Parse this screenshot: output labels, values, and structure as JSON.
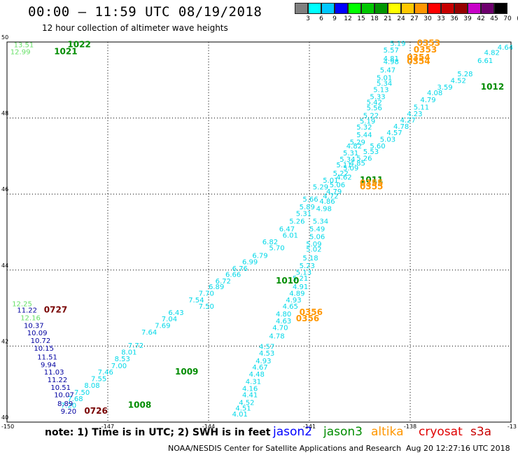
{
  "header": {
    "title": "00:00 – 11:59 UTC 08/19/2018",
    "subtitle": "12 hour collection of altimeter wave heights"
  },
  "legend": {
    "unit": "(ft)",
    "labels": [
      "3",
      "6",
      "9",
      "12",
      "15",
      "18",
      "21",
      "24",
      "27",
      "30",
      "33",
      "36",
      "39",
      "42",
      "45",
      "70"
    ],
    "colors": [
      "#808080",
      "#00ffff",
      "#00c8ff",
      "#0000ff",
      "#00ff00",
      "#00c800",
      "#009600",
      "#ffff00",
      "#ffc800",
      "#ff9600",
      "#ff0000",
      "#c80000",
      "#960000",
      "#c800c8",
      "#6e006e",
      "#000000"
    ]
  },
  "axes": {
    "lat_labels": [
      "50",
      "48",
      "46",
      "44",
      "42",
      "40"
    ],
    "lon_labels": [
      "-150",
      "-147",
      "-144",
      "-141",
      "-138",
      "-13"
    ]
  },
  "colors": {
    "cyan": "#00d8e8",
    "green": "#008c00",
    "light_green": "#66e066",
    "navy": "#0000a0",
    "orange": "#ff9600",
    "dark_red": "#780000"
  },
  "labels": [
    {
      "t": "13.51",
      "lat": 49.86,
      "lon": -149.8,
      "c": "light_green"
    },
    {
      "t": "1022",
      "lat": 49.86,
      "lon": -148.2,
      "c": "green",
      "big": true
    },
    {
      "t": "12.99",
      "lat": 49.68,
      "lon": -149.9,
      "c": "light_green"
    },
    {
      "t": "1021",
      "lat": 49.68,
      "lon": -148.6,
      "c": "green",
      "big": true
    },
    {
      "t": "5.19",
      "lat": 49.9,
      "lon": -138.6,
      "c": "cyan"
    },
    {
      "t": "0353",
      "lat": 49.9,
      "lon": -137.8,
      "c": "orange",
      "big": true
    },
    {
      "t": "4.64",
      "lat": 49.8,
      "lon": -135.4,
      "c": "cyan"
    },
    {
      "t": "5.57",
      "lat": 49.72,
      "lon": -138.8,
      "c": "cyan"
    },
    {
      "t": "0353",
      "lat": 49.72,
      "lon": -137.9,
      "c": "orange",
      "big": true
    },
    {
      "t": "4.82",
      "lat": 49.66,
      "lon": -135.8,
      "c": "cyan"
    },
    {
      "t": "4.81",
      "lat": 49.5,
      "lon": -138.8,
      "c": "cyan"
    },
    {
      "t": "0354",
      "lat": 49.52,
      "lon": -138.1,
      "c": "orange",
      "big": true
    },
    {
      "t": "6.61",
      "lat": 49.45,
      "lon": -136.0,
      "c": "cyan"
    },
    {
      "t": "4.98",
      "lat": 49.42,
      "lon": -138.8,
      "c": "cyan"
    },
    {
      "t": "0354",
      "lat": 49.42,
      "lon": -138.1,
      "c": "orange",
      "big": true
    },
    {
      "t": "5.47",
      "lat": 49.2,
      "lon": -138.9,
      "c": "cyan"
    },
    {
      "t": "5.28",
      "lat": 49.1,
      "lon": -136.6,
      "c": "cyan"
    },
    {
      "t": "5.01",
      "lat": 49.0,
      "lon": -139.0,
      "c": "cyan"
    },
    {
      "t": "4.52",
      "lat": 48.92,
      "lon": -136.8,
      "c": "cyan"
    },
    {
      "t": "5.34",
      "lat": 48.85,
      "lon": -139.0,
      "c": "cyan"
    },
    {
      "t": "3.59",
      "lat": 48.75,
      "lon": -137.2,
      "c": "cyan"
    },
    {
      "t": "1012",
      "lat": 48.75,
      "lon": -135.9,
      "c": "green",
      "big": true
    },
    {
      "t": "5.13",
      "lat": 48.68,
      "lon": -139.1,
      "c": "cyan"
    },
    {
      "t": "4.08",
      "lat": 48.6,
      "lon": -137.5,
      "c": "cyan"
    },
    {
      "t": "5.33",
      "lat": 48.5,
      "lon": -139.2,
      "c": "cyan"
    },
    {
      "t": "4.79",
      "lat": 48.42,
      "lon": -137.7,
      "c": "cyan"
    },
    {
      "t": "5.42",
      "lat": 48.35,
      "lon": -139.3,
      "c": "cyan"
    },
    {
      "t": "5.11",
      "lat": 48.22,
      "lon": -137.9,
      "c": "cyan"
    },
    {
      "t": "5.56",
      "lat": 48.2,
      "lon": -139.3,
      "c": "cyan"
    },
    {
      "t": "4.23",
      "lat": 48.05,
      "lon": -138.1,
      "c": "cyan"
    },
    {
      "t": "5.22",
      "lat": 48.0,
      "lon": -139.4,
      "c": "cyan"
    },
    {
      "t": "4.27",
      "lat": 47.88,
      "lon": -138.3,
      "c": "cyan"
    },
    {
      "t": "5.19",
      "lat": 47.85,
      "lon": -139.5,
      "c": "cyan"
    },
    {
      "t": "4.78",
      "lat": 47.72,
      "lon": -138.5,
      "c": "cyan"
    },
    {
      "t": "5.32",
      "lat": 47.7,
      "lon": -139.6,
      "c": "cyan"
    },
    {
      "t": "4.57",
      "lat": 47.55,
      "lon": -138.7,
      "c": "cyan"
    },
    {
      "t": "5.44",
      "lat": 47.5,
      "lon": -139.6,
      "c": "cyan"
    },
    {
      "t": "5.03",
      "lat": 47.38,
      "lon": -138.9,
      "c": "cyan"
    },
    {
      "t": "5.29",
      "lat": 47.3,
      "lon": -139.8,
      "c": "cyan"
    },
    {
      "t": "5.60",
      "lat": 47.2,
      "lon": -139.2,
      "c": "cyan"
    },
    {
      "t": "4.82",
      "lat": 47.2,
      "lon": -139.9,
      "c": "cyan"
    },
    {
      "t": "5.53",
      "lat": 47.05,
      "lon": -139.4,
      "c": "cyan"
    },
    {
      "t": "5.31",
      "lat": 47.02,
      "lon": -140.0,
      "c": "cyan"
    },
    {
      "t": "5.26",
      "lat": 46.88,
      "lon": -139.6,
      "c": "cyan"
    },
    {
      "t": "5.34",
      "lat": 46.85,
      "lon": -140.1,
      "c": "cyan"
    },
    {
      "t": "4.85",
      "lat": 46.75,
      "lon": -139.8,
      "c": "cyan"
    },
    {
      "t": "5.11",
      "lat": 46.7,
      "lon": -140.2,
      "c": "cyan"
    },
    {
      "t": "5.09",
      "lat": 46.62,
      "lon": -140.0,
      "c": "cyan"
    },
    {
      "t": "5.22",
      "lat": 46.48,
      "lon": -140.3,
      "c": "cyan"
    },
    {
      "t": "4.62",
      "lat": 46.38,
      "lon": -140.2,
      "c": "cyan"
    },
    {
      "t": "1011",
      "lat": 46.3,
      "lon": -139.5,
      "c": "green",
      "big": true
    },
    {
      "t": "5.01",
      "lat": 46.3,
      "lon": -140.6,
      "c": "cyan"
    },
    {
      "t": "0355",
      "lat": 46.22,
      "lon": -139.5,
      "c": "orange",
      "big": true
    },
    {
      "t": "5.06",
      "lat": 46.18,
      "lon": -140.4,
      "c": "cyan"
    },
    {
      "t": "0355",
      "lat": 46.12,
      "lon": -139.5,
      "c": "orange",
      "big": true
    },
    {
      "t": "5.29",
      "lat": 46.12,
      "lon": -140.9,
      "c": "cyan"
    },
    {
      "t": "4.79",
      "lat": 46.0,
      "lon": -140.5,
      "c": "cyan"
    },
    {
      "t": "4.72",
      "lat": 45.88,
      "lon": -140.6,
      "c": "cyan"
    },
    {
      "t": "5.66",
      "lat": 45.8,
      "lon": -141.2,
      "c": "cyan"
    },
    {
      "t": "4.86",
      "lat": 45.75,
      "lon": -140.7,
      "c": "cyan"
    },
    {
      "t": "5.89",
      "lat": 45.6,
      "lon": -141.3,
      "c": "cyan"
    },
    {
      "t": "4.98",
      "lat": 45.55,
      "lon": -140.8,
      "c": "cyan"
    },
    {
      "t": "5.31",
      "lat": 45.42,
      "lon": -141.4,
      "c": "cyan"
    },
    {
      "t": "5.26",
      "lat": 45.22,
      "lon": -141.6,
      "c": "cyan"
    },
    {
      "t": "5.34",
      "lat": 45.22,
      "lon": -140.9,
      "c": "cyan"
    },
    {
      "t": "6.47",
      "lat": 45.02,
      "lon": -141.9,
      "c": "cyan"
    },
    {
      "t": "5.49",
      "lat": 45.02,
      "lon": -141.0,
      "c": "cyan"
    },
    {
      "t": "6.01",
      "lat": 44.85,
      "lon": -141.8,
      "c": "cyan"
    },
    {
      "t": "5.06",
      "lat": 44.82,
      "lon": -141.0,
      "c": "cyan"
    },
    {
      "t": "6.82",
      "lat": 44.68,
      "lon": -142.4,
      "c": "cyan"
    },
    {
      "t": "5.09",
      "lat": 44.62,
      "lon": -141.1,
      "c": "cyan"
    },
    {
      "t": "5.70",
      "lat": 44.52,
      "lon": -142.2,
      "c": "cyan"
    },
    {
      "t": "5.02",
      "lat": 44.48,
      "lon": -141.1,
      "c": "cyan"
    },
    {
      "t": "6.79",
      "lat": 44.32,
      "lon": -142.7,
      "c": "cyan"
    },
    {
      "t": "5.18",
      "lat": 44.25,
      "lon": -141.2,
      "c": "cyan"
    },
    {
      "t": "6.99",
      "lat": 44.15,
      "lon": -143.0,
      "c": "cyan"
    },
    {
      "t": "5.23",
      "lat": 44.05,
      "lon": -141.3,
      "c": "cyan"
    },
    {
      "t": "6.76",
      "lat": 43.98,
      "lon": -143.3,
      "c": "cyan"
    },
    {
      "t": "5.13",
      "lat": 43.88,
      "lon": -141.4,
      "c": "cyan"
    },
    {
      "t": "6.66",
      "lat": 43.82,
      "lon": -143.5,
      "c": "cyan"
    },
    {
      "t": "5.21",
      "lat": 43.72,
      "lon": -141.5,
      "c": "cyan"
    },
    {
      "t": "6.72",
      "lat": 43.65,
      "lon": -143.8,
      "c": "cyan"
    },
    {
      "t": "1010",
      "lat": 43.65,
      "lon": -142.0,
      "c": "green",
      "big": true
    },
    {
      "t": "6.89",
      "lat": 43.5,
      "lon": -144.0,
      "c": "cyan"
    },
    {
      "t": "4.91",
      "lat": 43.5,
      "lon": -141.5,
      "c": "cyan"
    },
    {
      "t": "7.70",
      "lat": 43.32,
      "lon": -144.3,
      "c": "cyan"
    },
    {
      "t": "4.89",
      "lat": 43.32,
      "lon": -141.6,
      "c": "cyan"
    },
    {
      "t": "7.54",
      "lat": 43.15,
      "lon": -144.6,
      "c": "cyan"
    },
    {
      "t": "4.93",
      "lat": 43.15,
      "lon": -141.7,
      "c": "cyan"
    },
    {
      "t": "7.50",
      "lat": 42.98,
      "lon": -144.3,
      "c": "cyan"
    },
    {
      "t": "4.65",
      "lat": 42.98,
      "lon": -141.8,
      "c": "cyan"
    },
    {
      "t": "6.43",
      "lat": 42.82,
      "lon": -145.2,
      "c": "cyan"
    },
    {
      "t": "0356",
      "lat": 42.82,
      "lon": -141.3,
      "c": "orange",
      "big": true
    },
    {
      "t": "4.80",
      "lat": 42.78,
      "lon": -142.0,
      "c": "cyan"
    },
    {
      "t": "7.04",
      "lat": 42.65,
      "lon": -145.4,
      "c": "cyan"
    },
    {
      "t": "0356",
      "lat": 42.65,
      "lon": -141.4,
      "c": "orange",
      "big": true
    },
    {
      "t": "4.63",
      "lat": 42.6,
      "lon": -142.0,
      "c": "cyan"
    },
    {
      "t": "7.69",
      "lat": 42.48,
      "lon": -145.6,
      "c": "cyan"
    },
    {
      "t": "4.70",
      "lat": 42.42,
      "lon": -142.1,
      "c": "cyan"
    },
    {
      "t": "7.64",
      "lat": 42.3,
      "lon": -146.0,
      "c": "cyan"
    },
    {
      "t": "4.78",
      "lat": 42.2,
      "lon": -142.2,
      "c": "cyan"
    },
    {
      "t": "7.72",
      "lat": 41.95,
      "lon": -146.4,
      "c": "cyan"
    },
    {
      "t": "4.57",
      "lat": 41.92,
      "lon": -142.5,
      "c": "cyan"
    },
    {
      "t": "8.01",
      "lat": 41.78,
      "lon": -146.6,
      "c": "cyan"
    },
    {
      "t": "4.53",
      "lat": 41.75,
      "lon": -142.5,
      "c": "cyan"
    },
    {
      "t": "8.53",
      "lat": 41.6,
      "lon": -146.8,
      "c": "cyan"
    },
    {
      "t": "4.93",
      "lat": 41.55,
      "lon": -142.6,
      "c": "cyan"
    },
    {
      "t": "7.00",
      "lat": 41.42,
      "lon": -146.9,
      "c": "cyan"
    },
    {
      "t": "4.67",
      "lat": 41.38,
      "lon": -142.7,
      "c": "cyan"
    },
    {
      "t": "7.46",
      "lat": 41.25,
      "lon": -147.3,
      "c": "cyan"
    },
    {
      "t": "1009",
      "lat": 41.25,
      "lon": -145.0,
      "c": "green",
      "big": true
    },
    {
      "t": "4.48",
      "lat": 41.2,
      "lon": -142.8,
      "c": "cyan"
    },
    {
      "t": "7.55",
      "lat": 41.08,
      "lon": -147.5,
      "c": "cyan"
    },
    {
      "t": "4.31",
      "lat": 41.0,
      "lon": -142.9,
      "c": "cyan"
    },
    {
      "t": "8.08",
      "lat": 40.9,
      "lon": -147.7,
      "c": "cyan"
    },
    {
      "t": "4.16",
      "lat": 40.82,
      "lon": -143.0,
      "c": "cyan"
    },
    {
      "t": "7.50",
      "lat": 40.72,
      "lon": -148.0,
      "c": "cyan"
    },
    {
      "t": "4.41",
      "lat": 40.65,
      "lon": -143.0,
      "c": "cyan"
    },
    {
      "t": "7.68",
      "lat": 40.55,
      "lon": -148.2,
      "c": "cyan"
    },
    {
      "t": "4.52",
      "lat": 40.45,
      "lon": -143.1,
      "c": "cyan"
    },
    {
      "t": "7.20",
      "lat": 40.38,
      "lon": -148.4,
      "c": "cyan"
    },
    {
      "t": "1008",
      "lat": 40.38,
      "lon": -146.4,
      "c": "green",
      "big": true
    },
    {
      "t": "4.51",
      "lat": 40.3,
      "lon": -143.2,
      "c": "cyan"
    },
    {
      "t": "4.01",
      "lat": 40.15,
      "lon": -143.3,
      "c": "cyan"
    },
    {
      "t": "12.25",
      "lat": 43.05,
      "lon": -149.85,
      "c": "light_green"
    },
    {
      "t": "11.22",
      "lat": 42.88,
      "lon": -149.7,
      "c": "navy"
    },
    {
      "t": "0727",
      "lat": 42.88,
      "lon": -148.9,
      "c": "dark_red",
      "big": true
    },
    {
      "t": "12.16",
      "lat": 42.68,
      "lon": -149.6,
      "c": "light_green"
    },
    {
      "t": "10.37",
      "lat": 42.48,
      "lon": -149.5,
      "c": "navy"
    },
    {
      "t": "10.09",
      "lat": 42.28,
      "lon": -149.4,
      "c": "navy"
    },
    {
      "t": "10.72",
      "lat": 42.08,
      "lon": -149.3,
      "c": "navy"
    },
    {
      "t": "10.15",
      "lat": 41.88,
      "lon": -149.2,
      "c": "navy"
    },
    {
      "t": "11.51",
      "lat": 41.65,
      "lon": -149.1,
      "c": "navy"
    },
    {
      "t": "9.94",
      "lat": 41.45,
      "lon": -149.0,
      "c": "navy"
    },
    {
      "t": "11.03",
      "lat": 41.25,
      "lon": -148.9,
      "c": "navy"
    },
    {
      "t": "11.22",
      "lat": 41.05,
      "lon": -148.8,
      "c": "navy"
    },
    {
      "t": "10.51",
      "lat": 40.85,
      "lon": -148.7,
      "c": "navy"
    },
    {
      "t": "10.07",
      "lat": 40.65,
      "lon": -148.6,
      "c": "navy"
    },
    {
      "t": "8.89",
      "lat": 40.42,
      "lon": -148.5,
      "c": "navy"
    },
    {
      "t": "9.20",
      "lat": 40.22,
      "lon": -148.4,
      "c": "navy"
    },
    {
      "t": "0726",
      "lat": 40.22,
      "lon": -147.7,
      "c": "dark_red",
      "big": true
    }
  ],
  "footer": {
    "note": "note: 1) Time is in UTC; 2) SWH is in feet",
    "missions": [
      {
        "name": "jason2",
        "color": "#0000ff"
      },
      {
        "name": "jason3",
        "color": "#008c00"
      },
      {
        "name": "altika",
        "color": "#ff9600"
      },
      {
        "name": "cryosat",
        "color": "#e00000"
      },
      {
        "name": "s3a",
        "color": "#c80000"
      }
    ],
    "credit": "NOAA/NESDIS Center for Satellite Applications and Research",
    "timestamp": "Aug 20 12:27:16 UTC 2018"
  }
}
